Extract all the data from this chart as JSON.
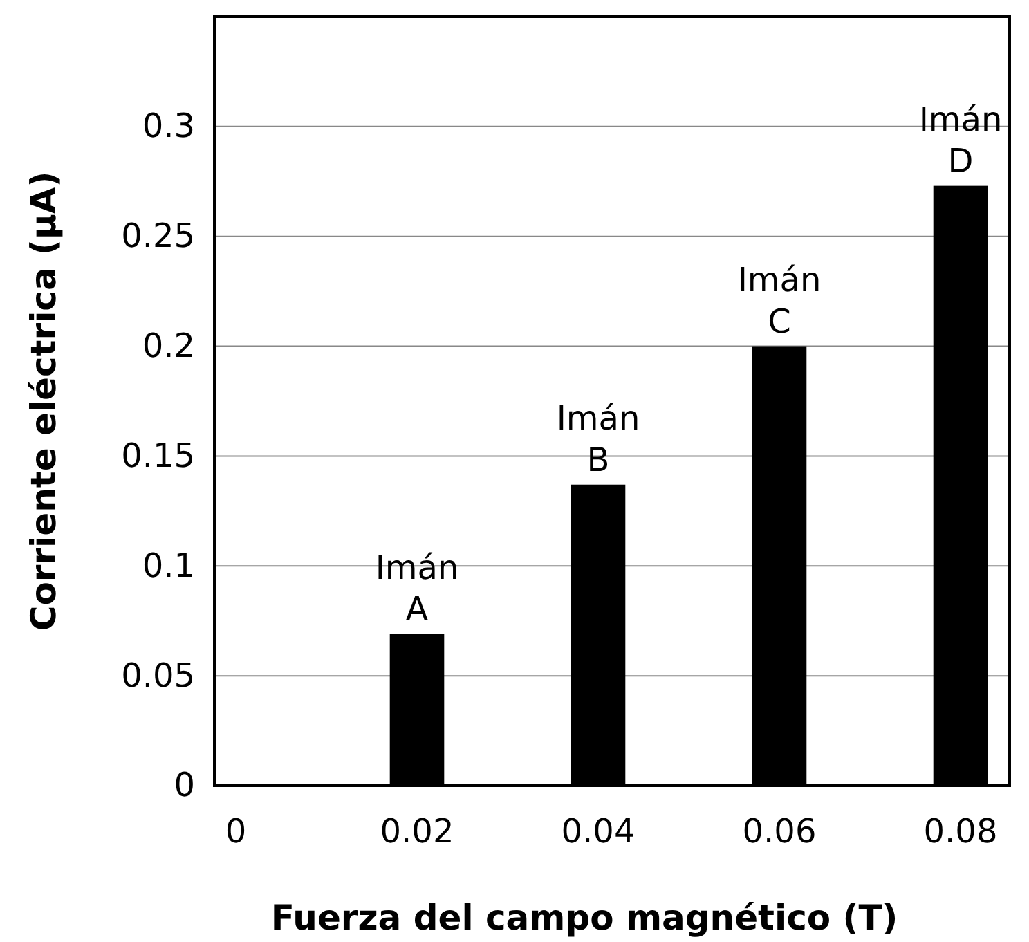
{
  "chart_data": {
    "type": "bar",
    "xlabel": "Fuerza del campo magnético (T)",
    "ylabel": "Corriente eléctrica (μA)",
    "categories": [
      "0",
      "0.02",
      "0.04",
      "0.06",
      "0.08"
    ],
    "values": [
      null,
      0.069,
      0.137,
      0.2,
      0.273
    ],
    "color": "#000000",
    "ylim": [
      0,
      0.35
    ],
    "yticks": [
      0,
      0.05,
      0.1,
      0.15,
      0.2,
      0.25,
      0.3
    ],
    "grid": "y",
    "annotations": [
      {
        "text": "Imán A",
        "x": "0.02",
        "y": 0.069
      },
      {
        "text": "Imán B",
        "x": "0.04",
        "y": 0.137
      },
      {
        "text": "Imán C",
        "x": "0.06",
        "y": 0.2
      },
      {
        "text": "Imán D",
        "x": "0.08",
        "y": 0.273
      }
    ]
  }
}
